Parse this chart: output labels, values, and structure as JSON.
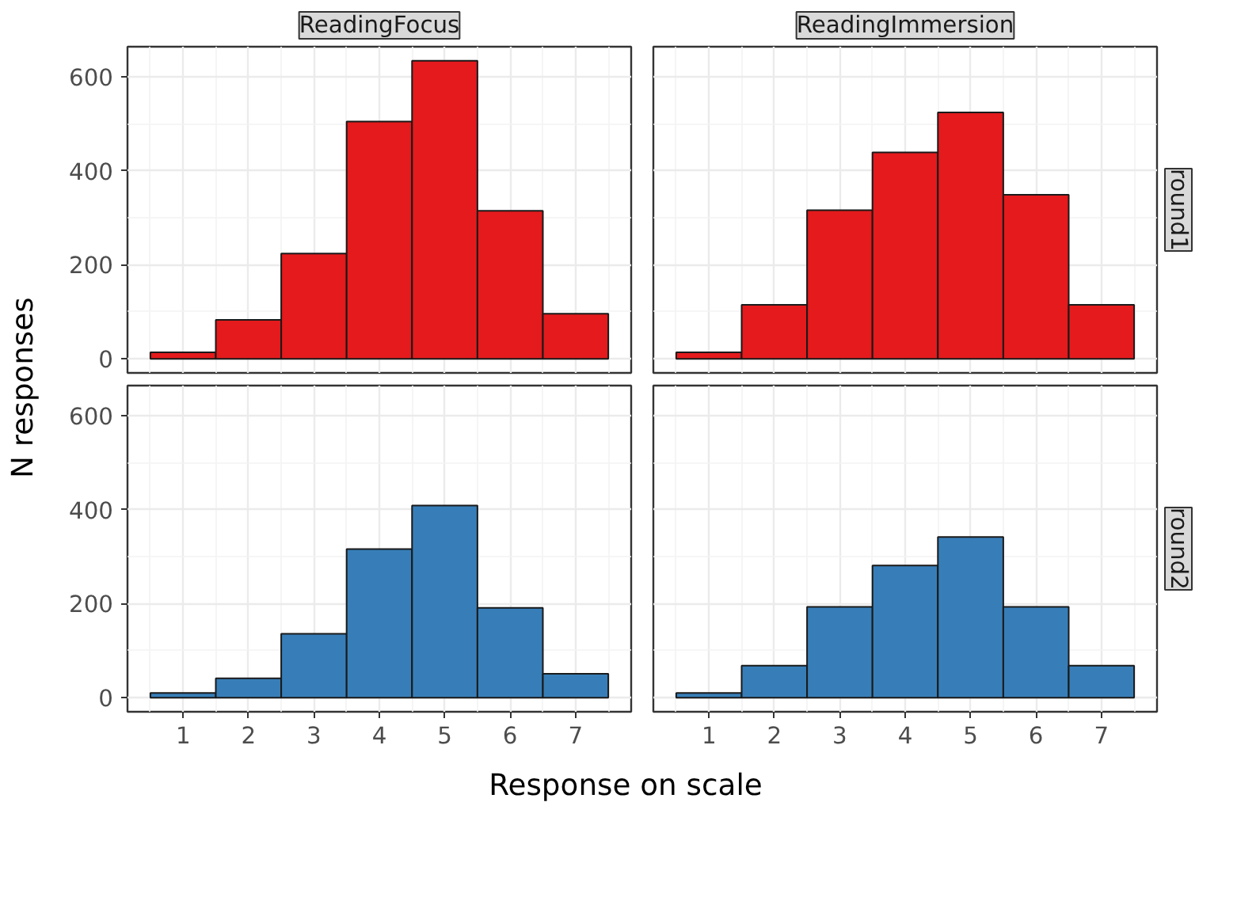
{
  "chart_data": [
    {
      "type": "histogram",
      "title": "ReadingFocus",
      "ylabel": "N responses",
      "bins": [
        0.5,
        1.5,
        2.5,
        3.5,
        4.5,
        5.5,
        6.5,
        7.5
      ],
      "values": [
        14,
        83,
        224,
        505,
        634,
        315,
        96
      ],
      "color": "#e41a1c",
      "xlim": [
        0.15,
        7.85
      ],
      "ylim": [
        -30,
        664
      ],
      "xticks": [
        1,
        2,
        3,
        4,
        5,
        6,
        7
      ],
      "yticks": [
        0,
        200,
        400,
        600
      ],
      "grid": true,
      "tick_labels": "y"
    },
    {
      "type": "histogram",
      "title": "ReadingImmersion",
      "annotations": [
        "round1"
      ],
      "bins": [
        0.5,
        1.5,
        2.5,
        3.5,
        4.5,
        5.5,
        6.5,
        7.5
      ],
      "values": [
        14,
        115,
        316,
        439,
        524,
        349,
        115
      ],
      "color": "#e41a1c",
      "xlim": [
        0.15,
        7.85
      ],
      "ylim": [
        -30,
        664
      ],
      "xticks": [
        1,
        2,
        3,
        4,
        5,
        6,
        7
      ],
      "yticks": [
        0,
        200,
        400,
        600
      ],
      "grid": true,
      "tick_labels": false
    },
    {
      "type": "histogram",
      "xlabel": "Response on scale",
      "bins": [
        0.5,
        1.5,
        2.5,
        3.5,
        4.5,
        5.5,
        6.5,
        7.5
      ],
      "values": [
        10,
        41,
        136,
        316,
        409,
        191,
        51
      ],
      "color": "#377eb8",
      "xlim": [
        0.15,
        7.85
      ],
      "ylim": [
        -30,
        664
      ],
      "xticks": [
        1,
        2,
        3,
        4,
        5,
        6,
        7
      ],
      "yticks": [
        0,
        200,
        400,
        600
      ],
      "grid": true
    },
    {
      "type": "histogram",
      "annotations": [
        "round2"
      ],
      "bins": [
        0.5,
        1.5,
        2.5,
        3.5,
        4.5,
        5.5,
        6.5,
        7.5
      ],
      "values": [
        10,
        68,
        193,
        281,
        342,
        193,
        68
      ],
      "color": "#377eb8",
      "xlim": [
        0.15,
        7.85
      ],
      "ylim": [
        -30,
        664
      ],
      "xticks": [
        1,
        2,
        3,
        4,
        5,
        6,
        7
      ],
      "yticks": [
        0,
        200,
        400,
        600
      ],
      "grid": true,
      "tick_labels": "x"
    }
  ]
}
